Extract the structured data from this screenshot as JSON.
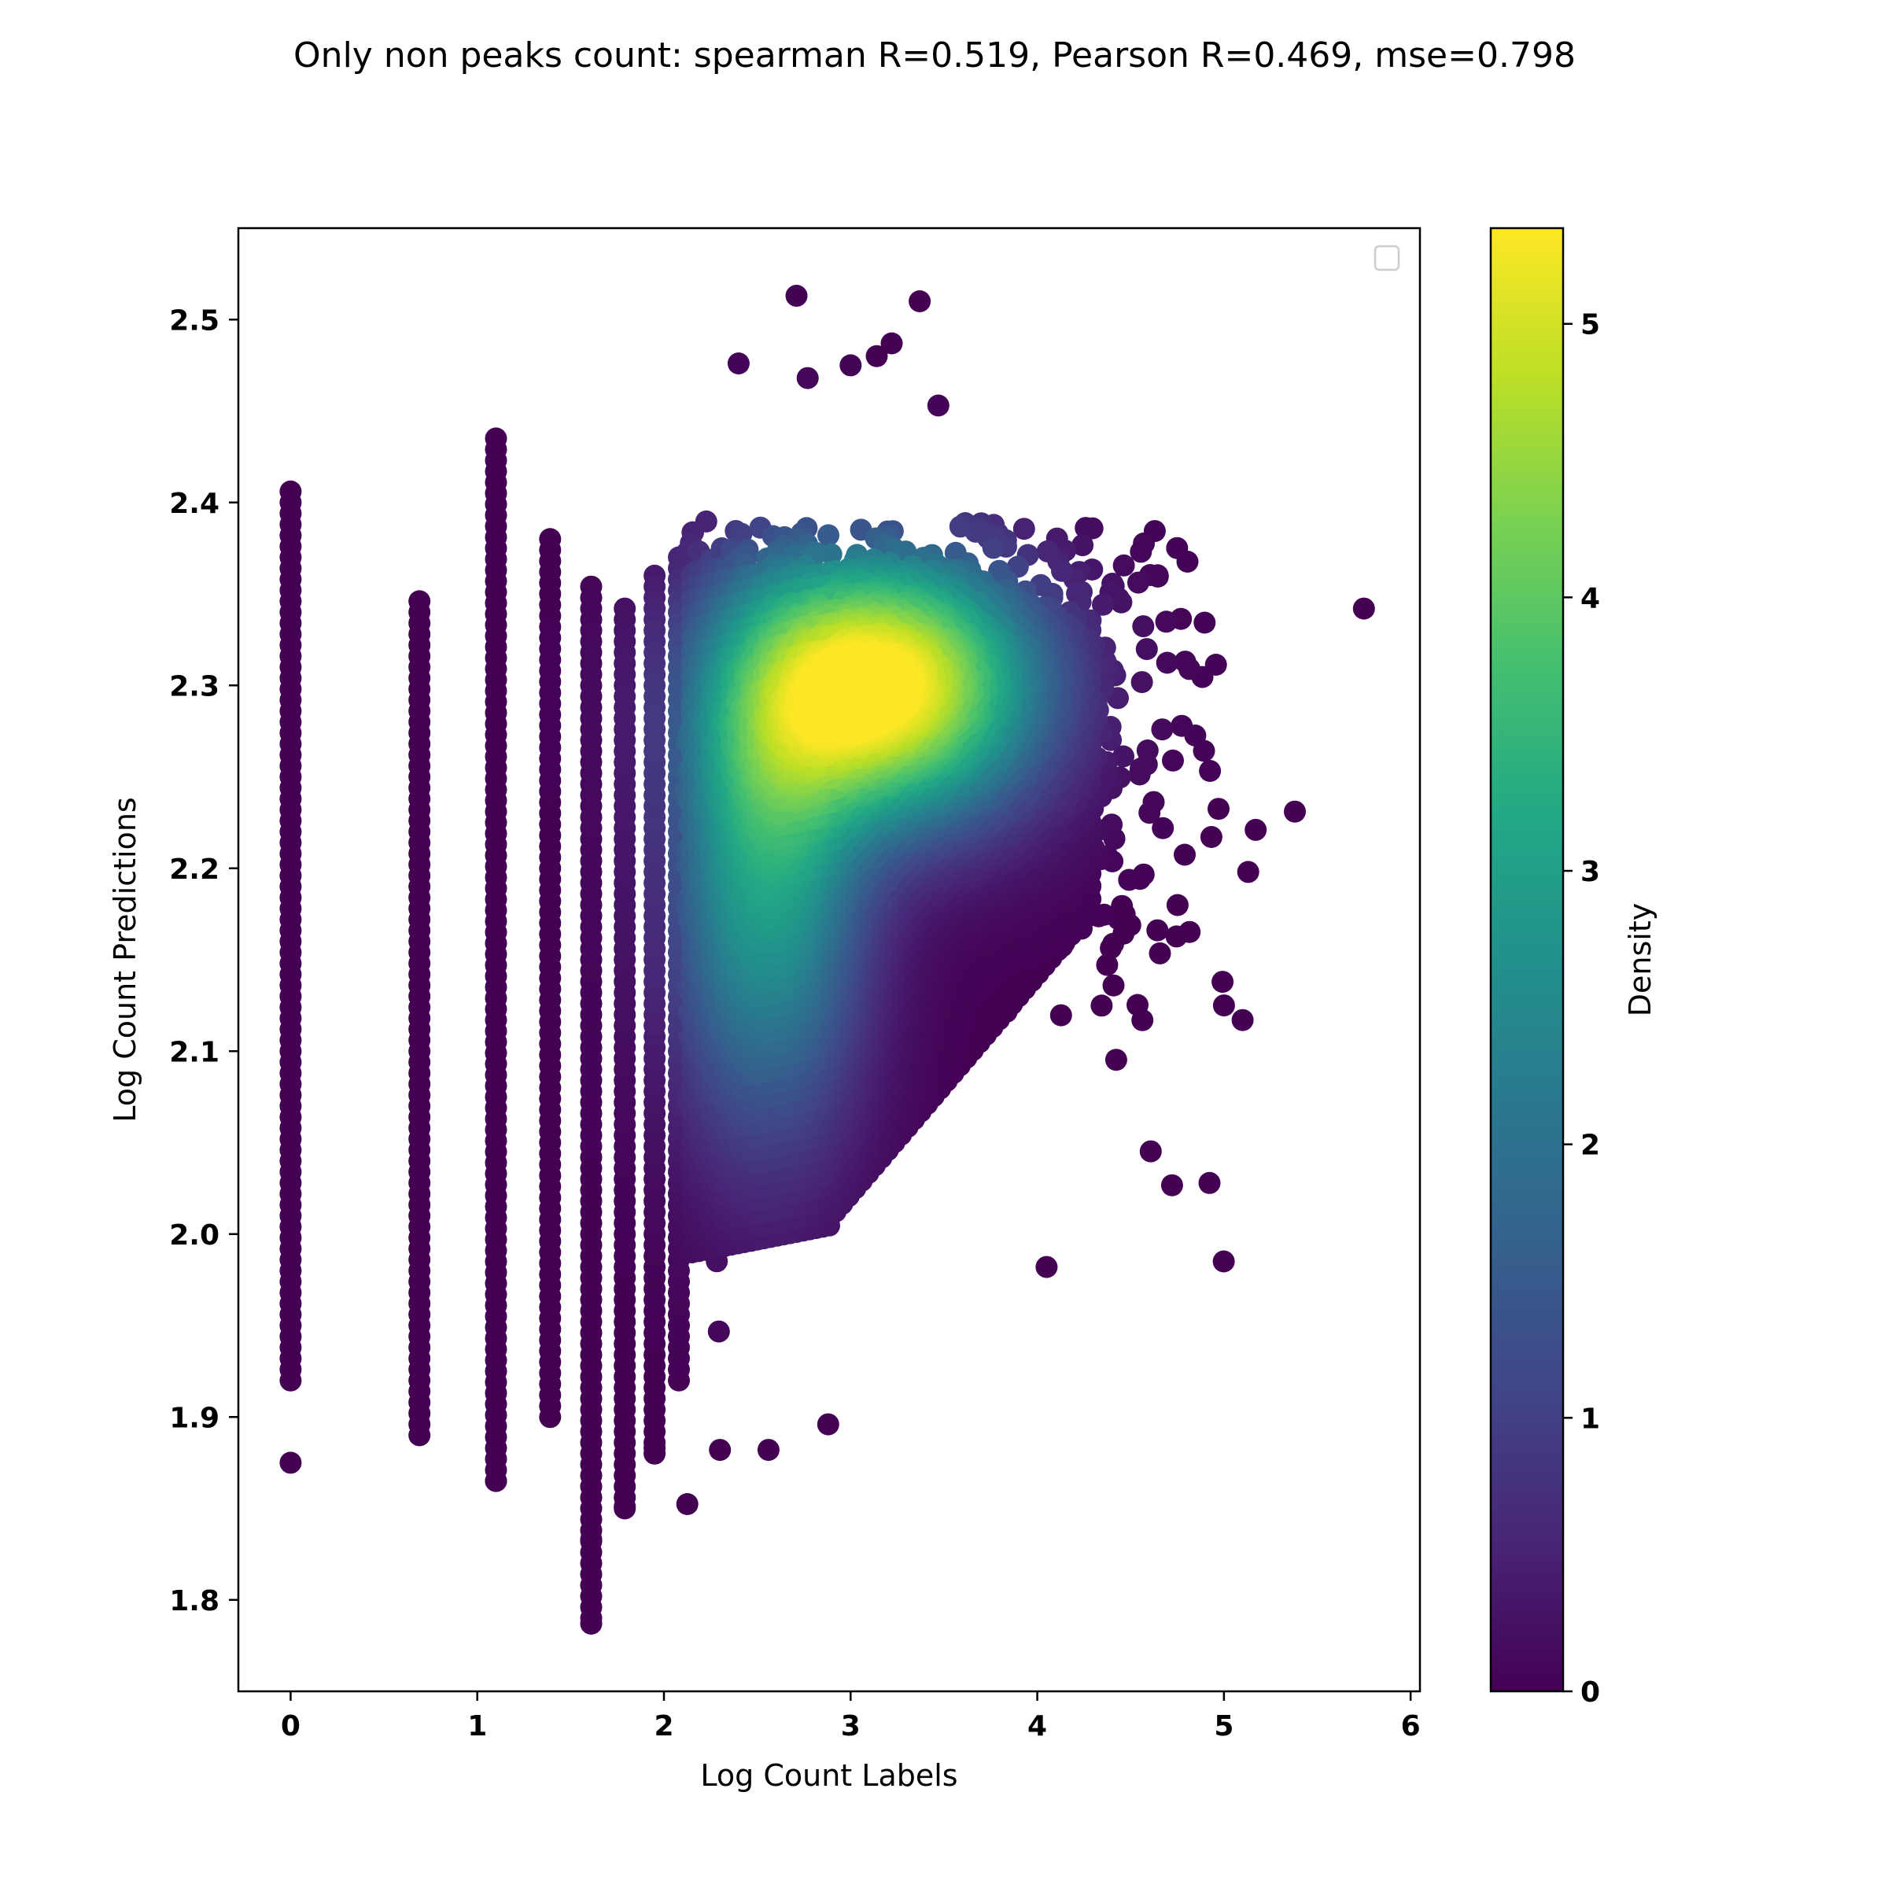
{
  "chart_data": {
    "type": "scatter",
    "title": "Only non peaks count: spearman R=0.519, Pearson R=0.469, mse=0.798",
    "xlabel": "Log Count Labels",
    "ylabel": "Log Count Predictions",
    "xlim": [
      -0.28,
      6.05
    ],
    "ylim": [
      1.75,
      2.55
    ],
    "xticks": [
      0,
      1,
      2,
      3,
      4,
      5,
      6
    ],
    "yticks": [
      1.8,
      1.9,
      2.0,
      2.1,
      2.2,
      2.3,
      2.4,
      2.5
    ],
    "ytick_labels": [
      "1.8",
      "1.9",
      "2.0",
      "2.1",
      "2.2",
      "2.3",
      "2.4",
      "2.5"
    ],
    "grid": false,
    "legend": {
      "placement": "upper-right",
      "entries": []
    },
    "colorbar": {
      "label": "Density",
      "colormap": "viridis",
      "range": [
        0,
        5.35
      ],
      "ticks": [
        0,
        1,
        2,
        3,
        4,
        5
      ]
    },
    "colors": {
      "low": "#440154",
      "mid": "#21918c",
      "high": "#fde725"
    },
    "density_peak": {
      "x": 3.2,
      "y": 2.3
    },
    "vertical_stripes": [
      {
        "x": 0.0,
        "y_min": 1.92,
        "y_max": 2.41
      },
      {
        "x": 0.69,
        "y_min": 1.89,
        "y_max": 2.35
      },
      {
        "x": 1.1,
        "y_min": 1.865,
        "y_max": 2.435
      },
      {
        "x": 1.39,
        "y_min": 1.9,
        "y_max": 2.38
      },
      {
        "x": 1.61,
        "y_min": 1.79,
        "y_max": 2.355
      },
      {
        "x": 1.79,
        "y_min": 1.85,
        "y_max": 2.345
      },
      {
        "x": 1.95,
        "y_min": 1.88,
        "y_max": 2.36
      },
      {
        "x": 2.08,
        "y_min": 1.92,
        "y_max": 2.37
      }
    ],
    "outliers": [
      {
        "x": 0.0,
        "y": 1.875
      },
      {
        "x": 1.1,
        "y": 1.865
      },
      {
        "x": 1.61,
        "y": 1.787
      },
      {
        "x": 1.61,
        "y": 1.833
      },
      {
        "x": 1.79,
        "y": 1.851
      },
      {
        "x": 2.4,
        "y": 2.476
      },
      {
        "x": 2.71,
        "y": 2.513
      },
      {
        "x": 2.77,
        "y": 2.468
      },
      {
        "x": 3.0,
        "y": 2.475
      },
      {
        "x": 3.14,
        "y": 2.48
      },
      {
        "x": 3.22,
        "y": 2.487
      },
      {
        "x": 3.37,
        "y": 2.51
      },
      {
        "x": 3.47,
        "y": 2.453
      },
      {
        "x": 5.75,
        "y": 2.342
      },
      {
        "x": 5.38,
        "y": 2.231
      },
      {
        "x": 5.17,
        "y": 2.221
      },
      {
        "x": 5.13,
        "y": 2.198
      },
      {
        "x": 5.1,
        "y": 2.117
      },
      {
        "x": 5.0,
        "y": 2.125
      },
      {
        "x": 4.05,
        "y": 1.982
      },
      {
        "x": 2.88,
        "y": 1.896
      },
      {
        "x": 2.56,
        "y": 1.882
      },
      {
        "x": 2.3,
        "y": 1.882
      },
      {
        "x": 1.95,
        "y": 1.883
      }
    ]
  }
}
